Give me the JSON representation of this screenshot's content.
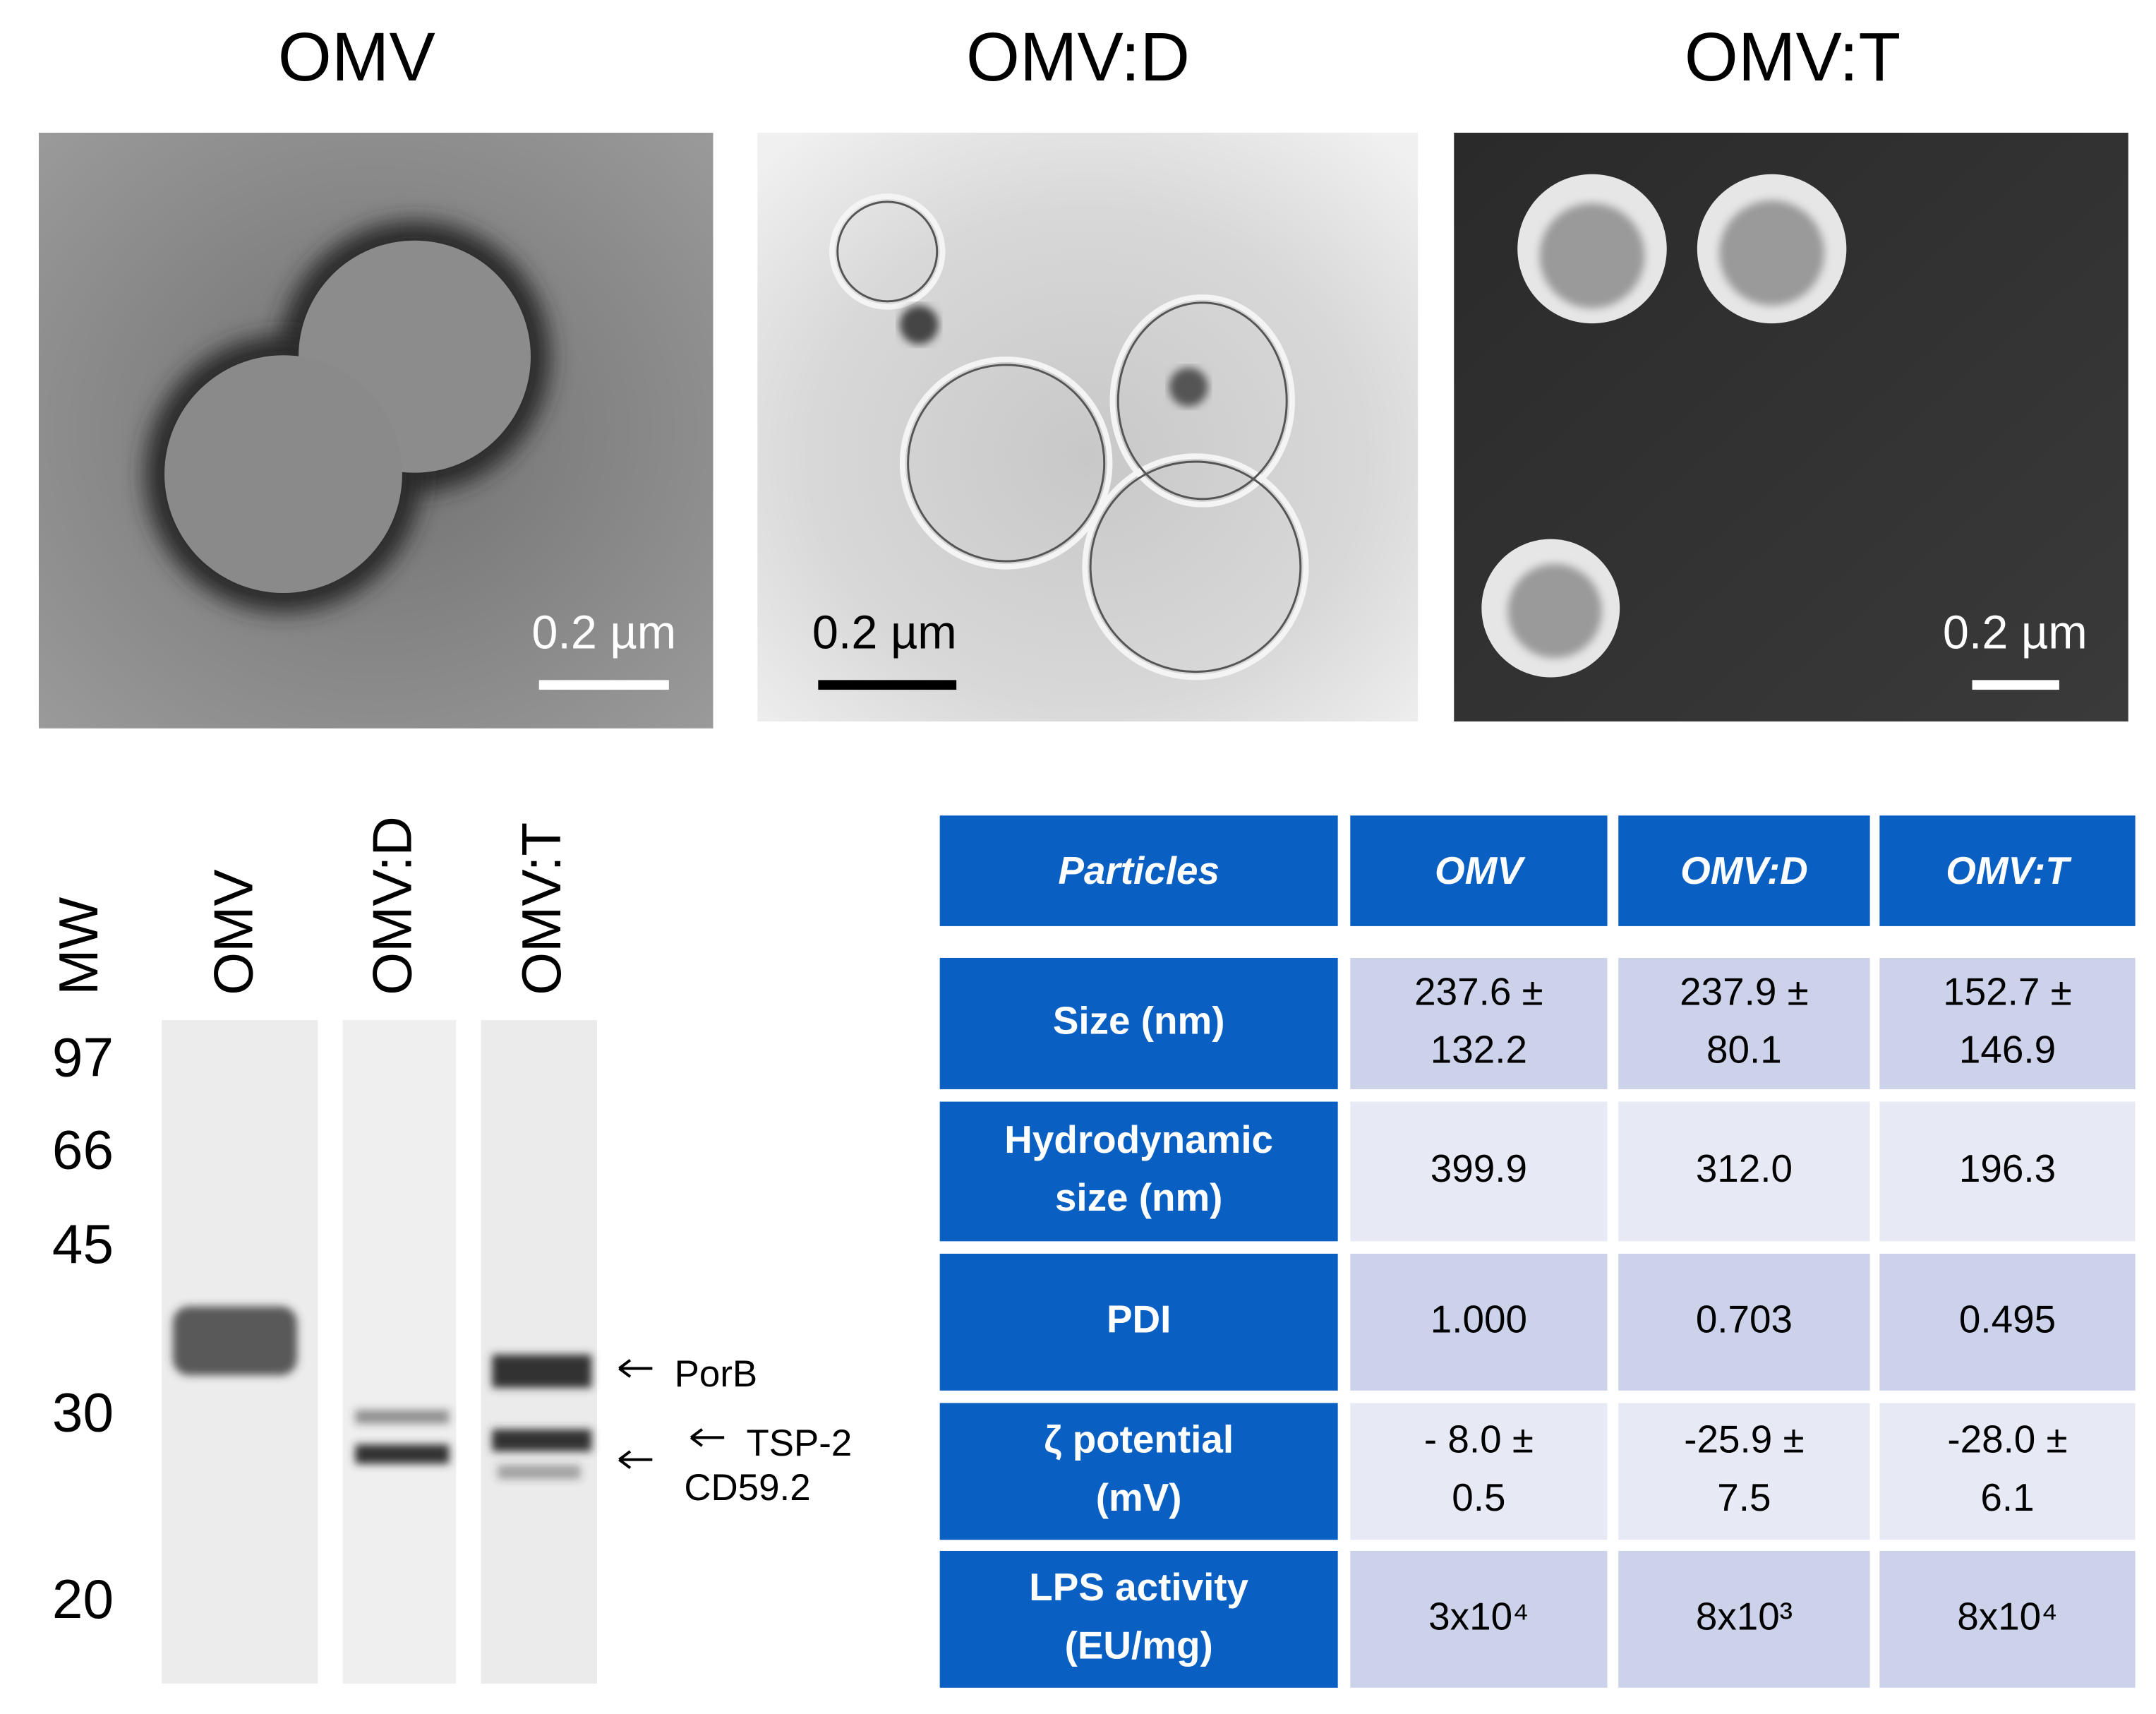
{
  "panels": [
    {
      "title": "OMV",
      "scale_label": "0.2 µm"
    },
    {
      "title": "OMV:D",
      "scale_label": "0.2 µm"
    },
    {
      "title": "OMV:T",
      "scale_label": "0.2 µm"
    }
  ],
  "gel": {
    "mw_label": "MW",
    "lanes": [
      "OMV",
      "OMV:D",
      "OMV:T"
    ],
    "markers": [
      "97",
      "66",
      "45",
      "30",
      "20"
    ],
    "bands": [
      "PorB",
      "TSP-2",
      "CD59.2"
    ]
  },
  "table": {
    "header": [
      "Particles",
      "OMV",
      "OMV:D",
      "OMV:T"
    ],
    "rows": [
      [
        [
          "Size (nm)"
        ],
        [
          "237.6 ±",
          "132.2"
        ],
        [
          "237.9 ±",
          "80.1"
        ],
        [
          "152.7 ±",
          "146.9"
        ]
      ],
      [
        [
          "Hydrodynamic",
          "size (nm)"
        ],
        [
          "399.9"
        ],
        [
          "312.0"
        ],
        [
          "196.3"
        ]
      ],
      [
        [
          "PDI"
        ],
        [
          "1.000"
        ],
        [
          "0.703"
        ],
        [
          "0.495"
        ]
      ],
      [
        [
          "ζ potential",
          "(mV)"
        ],
        [
          "- 8.0 ±",
          "0.5"
        ],
        [
          "-25.9 ±",
          "7.5"
        ],
        [
          "-28.0 ±",
          "6.1"
        ]
      ],
      [
        [
          "LPS activity",
          "(EU/mg)"
        ],
        [
          "3x10⁴"
        ],
        [
          "8x10³"
        ],
        [
          "8x10⁴"
        ]
      ]
    ]
  }
}
